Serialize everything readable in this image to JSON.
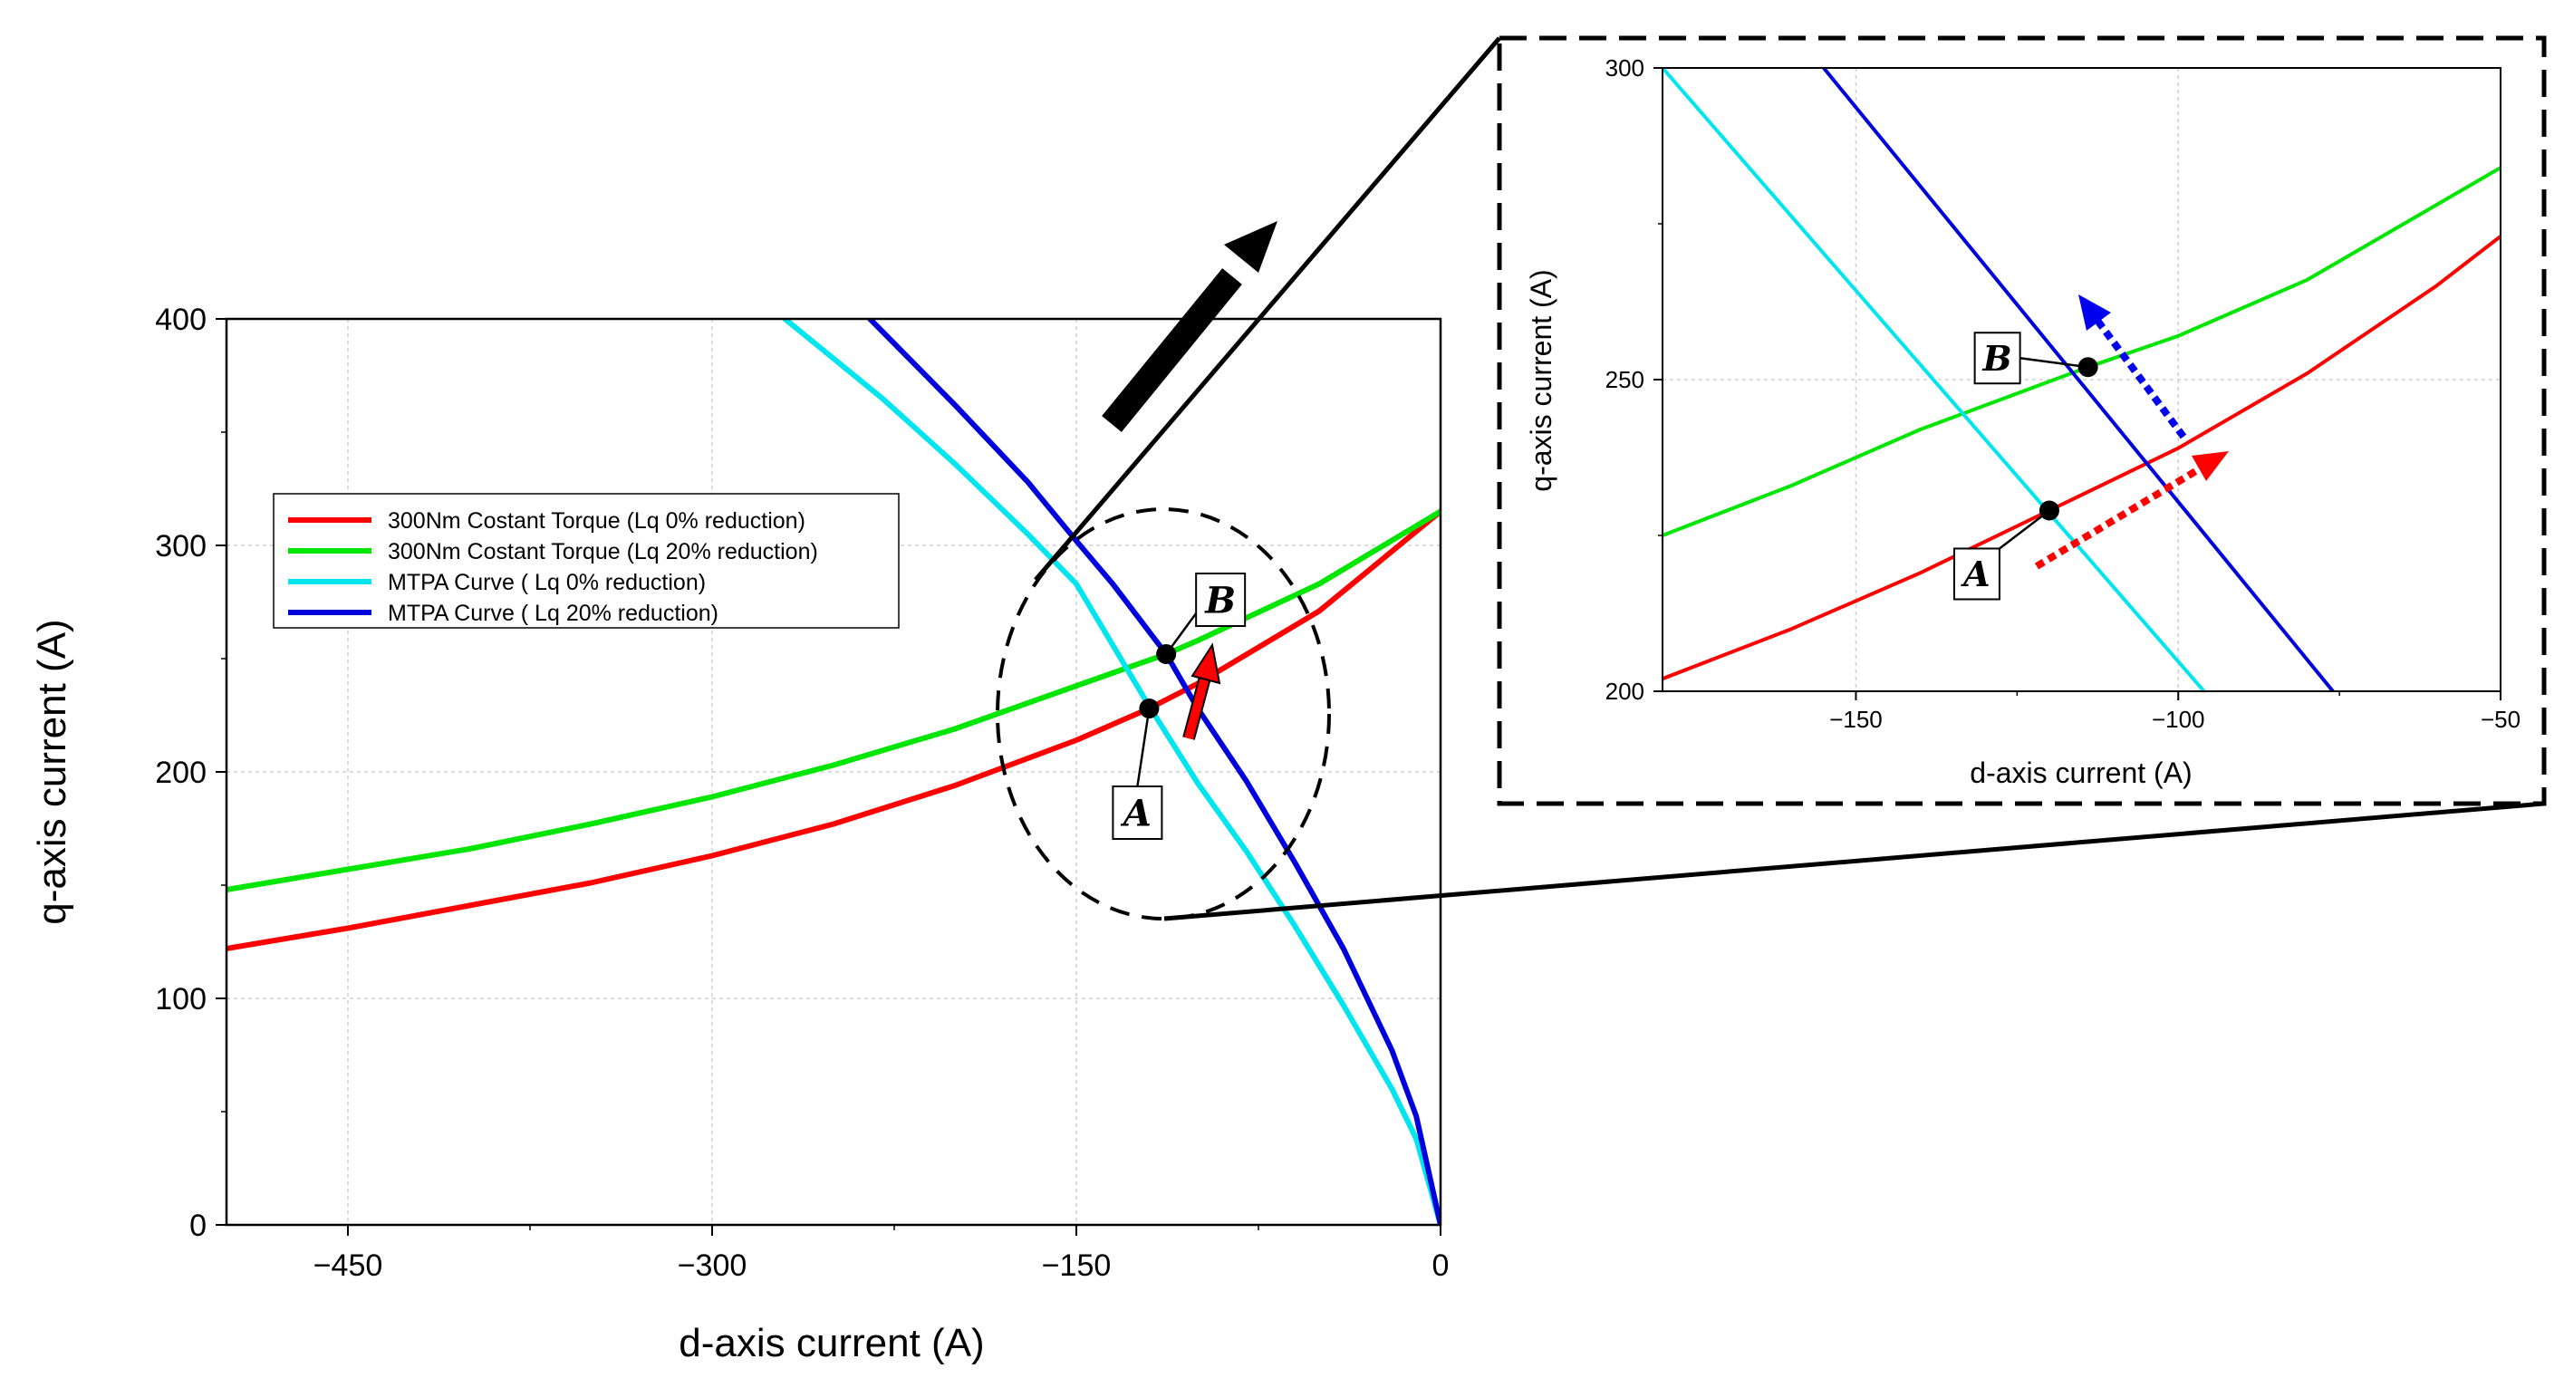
{
  "chart_data": [
    {
      "type": "line",
      "title": "",
      "xlabel": "d-axis current (A)",
      "ylabel": "q-axis current (A)",
      "xlim": [
        -500,
        0
      ],
      "ylim": [
        0,
        400
      ],
      "xticks": [
        {
          "v": -450,
          "label": "−450"
        },
        {
          "v": -300,
          "label": "−300"
        },
        {
          "v": -150,
          "label": "−150"
        },
        {
          "v": 0,
          "label": "0"
        }
      ],
      "yticks": [
        {
          "v": 0,
          "label": "0"
        },
        {
          "v": 100,
          "label": "100"
        },
        {
          "v": 200,
          "label": "200"
        },
        {
          "v": 300,
          "label": "300"
        },
        {
          "v": 400,
          "label": "400"
        }
      ],
      "grid": true,
      "legend_position": "upper-left",
      "series": [
        {
          "name": "300Nm Costant Torque (Lq 0% reduction)",
          "color": "#ff0000",
          "x": [
            -500,
            -450,
            -400,
            -350,
            -300,
            -250,
            -200,
            -150,
            -120,
            -100,
            -50,
            0
          ],
          "y": [
            122,
            131,
            141,
            151,
            163,
            177,
            194,
            214,
            228,
            239,
            271,
            315
          ]
        },
        {
          "name": "300Nm Costant Torque (Lq 20% reduction)",
          "color": "#00e600",
          "x": [
            -500,
            -450,
            -400,
            -350,
            -300,
            -250,
            -200,
            -150,
            -113,
            -100,
            -50,
            0
          ],
          "y": [
            148,
            157,
            166,
            177,
            189,
            203,
            219,
            238,
            252,
            258,
            283,
            315
          ]
        },
        {
          "name": "MTPA Curve ( Lq 0% reduction)",
          "color": "#00e5ee",
          "x": [
            -270,
            -230,
            -200,
            -170,
            -150,
            -120,
            -100,
            -80,
            -60,
            -40,
            -20,
            -10,
            0
          ],
          "y": [
            400,
            365,
            336,
            305,
            283,
            229,
            195,
            165,
            132,
            97,
            60,
            38,
            0
          ]
        },
        {
          "name": "MTPA Curve ( Lq 20% reduction)",
          "color": "#0000dd",
          "x": [
            -235,
            -200,
            -170,
            -150,
            -135,
            -113,
            -100,
            -80,
            -60,
            -40,
            -20,
            -10,
            0
          ],
          "y": [
            400,
            362,
            328,
            302,
            283,
            252,
            228,
            196,
            160,
            122,
            77,
            48,
            0
          ]
        }
      ],
      "annotations": [
        {
          "label": "A",
          "x": -120,
          "y": 228
        },
        {
          "label": "B",
          "x": -113,
          "y": 252
        }
      ]
    },
    {
      "type": "line",
      "title": "",
      "xlabel": "d-axis current (A)",
      "ylabel": "q-axis current (A)",
      "xlim": [
        -180,
        -50
      ],
      "ylim": [
        200,
        300
      ],
      "xticks": [
        {
          "v": -150,
          "label": "−150"
        },
        {
          "v": -100,
          "label": "−100"
        },
        {
          "v": -50,
          "label": "−50"
        }
      ],
      "yticks": [
        {
          "v": 200,
          "label": "200"
        },
        {
          "v": 250,
          "label": "250"
        },
        {
          "v": 300,
          "label": "300"
        }
      ],
      "grid": true,
      "series": [
        {
          "name": "300Nm Costant Torque (Lq 0% reduction)",
          "color": "#ff0000",
          "x": [
            -180,
            -160,
            -140,
            -120,
            -100,
            -80,
            -60,
            -50
          ],
          "y": [
            202,
            210,
            219,
            229,
            239,
            251,
            265,
            273
          ]
        },
        {
          "name": "300Nm Costant Torque (Lq 20% reduction)",
          "color": "#00e600",
          "x": [
            -180,
            -160,
            -140,
            -114,
            -100,
            -80,
            -60,
            -50
          ],
          "y": [
            225,
            233,
            242,
            252,
            257,
            266,
            278,
            284
          ]
        },
        {
          "name": "MTPA Curve ( Lq 0% reduction)",
          "color": "#00e5ee",
          "x": [
            -180,
            -96
          ],
          "y": [
            300,
            200
          ]
        },
        {
          "name": "MTPA Curve ( Lq 20% reduction)",
          "color": "#0000dd",
          "x": [
            -155,
            -76
          ],
          "y": [
            300,
            200
          ]
        }
      ],
      "annotations": [
        {
          "label": "A",
          "x": -120,
          "y": 229
        },
        {
          "label": "B",
          "x": -114,
          "y": 252
        }
      ]
    }
  ]
}
